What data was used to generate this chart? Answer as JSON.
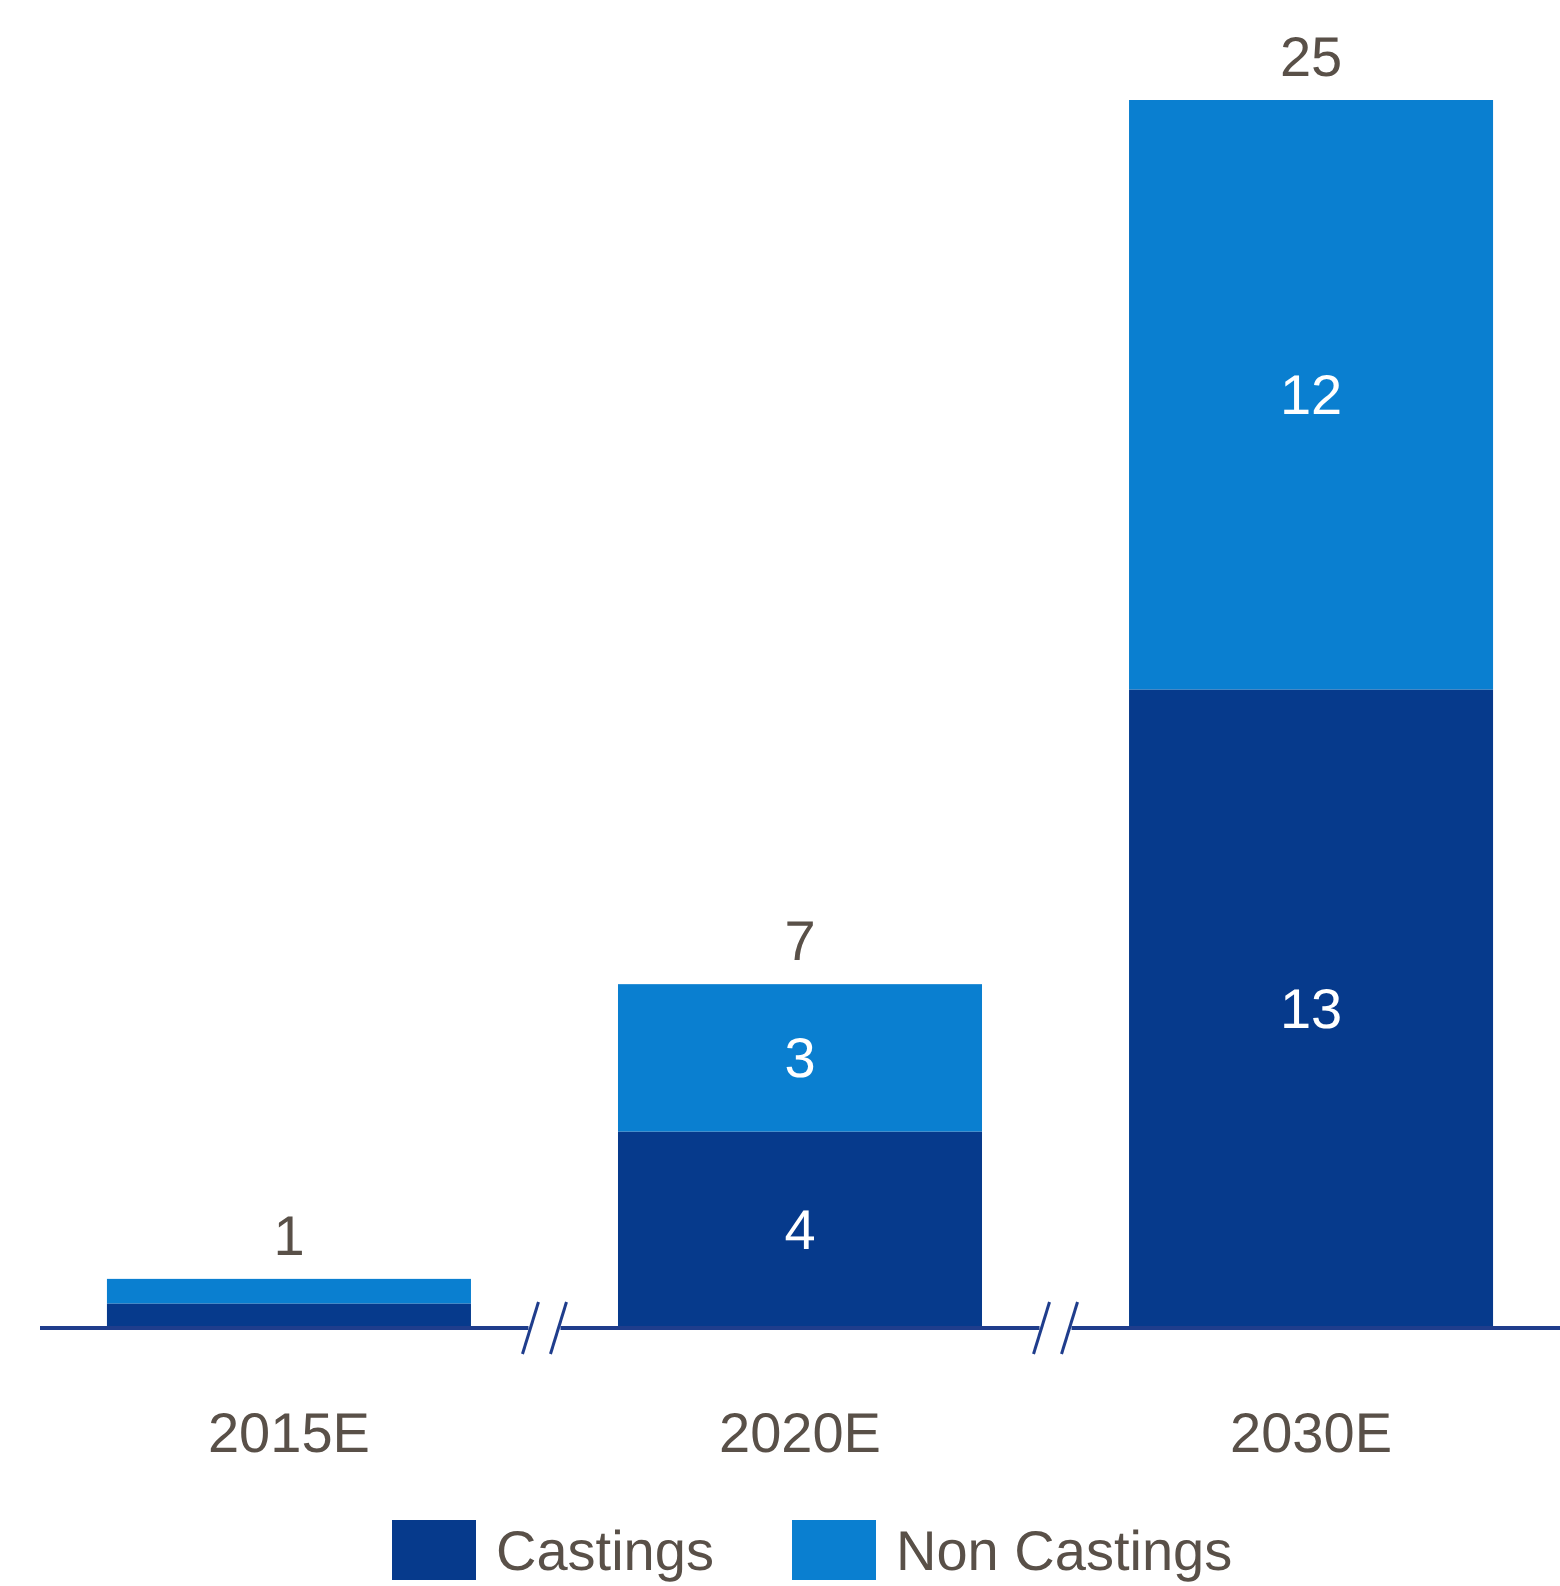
{
  "chart_data": {
    "type": "bar",
    "stacked": true,
    "categories": [
      "2015E",
      "2020E",
      "2030E"
    ],
    "series": [
      {
        "name": "Castings",
        "color": "#063a8c",
        "values": [
          0.5,
          4,
          13
        ],
        "value_labels": [
          null,
          "4",
          "13"
        ]
      },
      {
        "name": "Non Castings",
        "color": "#0a7fd0",
        "values": [
          0.5,
          3,
          12
        ],
        "value_labels": [
          null,
          "3",
          "12"
        ]
      }
    ],
    "totals": [
      "1",
      "7",
      "25"
    ],
    "legend": "bottom",
    "ylim": [
      0,
      25
    ],
    "tick_labels": "x"
  }
}
